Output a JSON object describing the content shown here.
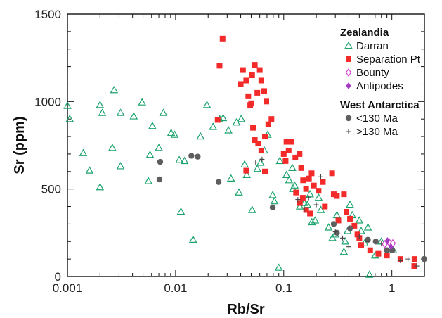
{
  "chart_data": {
    "type": "scatter",
    "xlabel": "Rb/Sr",
    "ylabel": "Sr (ppm)",
    "xscale": "log",
    "xlim": [
      0.001,
      2
    ],
    "ylim": [
      0,
      1500
    ],
    "x_ticks": [
      {
        "value": 0.001,
        "label": "0.001"
      },
      {
        "value": 0.01,
        "label": "0.01"
      },
      {
        "value": 0.1,
        "label": "0.1"
      },
      {
        "value": 1,
        "label": "1"
      }
    ],
    "y_ticks": [
      {
        "value": 0,
        "label": "0"
      },
      {
        "value": 500,
        "label": "500"
      },
      {
        "value": 1000,
        "label": "1000"
      },
      {
        "value": 1500,
        "label": "1500"
      }
    ],
    "legend": {
      "groups": [
        {
          "title": "Zealandia",
          "entries": [
            "Darran",
            "Separation Pt",
            "Bounty",
            "Antipodes"
          ]
        },
        {
          "title": "West Antarctica",
          "entries": [
            "<130 Ma",
            ">130 Ma"
          ]
        }
      ]
    },
    "series": [
      {
        "name": "Darran",
        "marker": "triangle-open",
        "color": "#1aa36b",
        "points": [
          [
            0.001,
            975
          ],
          [
            0.00105,
            900
          ],
          [
            0.0014,
            705
          ],
          [
            0.0016,
            605
          ],
          [
            0.002,
            980
          ],
          [
            0.0021,
            935
          ],
          [
            0.002,
            510
          ],
          [
            0.0027,
            1065
          ],
          [
            0.0026,
            735
          ],
          [
            0.0031,
            935
          ],
          [
            0.0031,
            630
          ],
          [
            0.0041,
            915
          ],
          [
            0.0049,
            995
          ],
          [
            0.0061,
            860
          ],
          [
            0.0058,
            695
          ],
          [
            0.0056,
            545
          ],
          [
            0.007,
            735
          ],
          [
            0.0077,
            935
          ],
          [
            0.0091,
            820
          ],
          [
            0.0098,
            810
          ],
          [
            0.0108,
            665
          ],
          [
            0.0112,
            370
          ],
          [
            0.0121,
            660
          ],
          [
            0.0145,
            210
          ],
          [
            0.017,
            800
          ],
          [
            0.0195,
            980
          ],
          [
            0.0222,
            855
          ],
          [
            0.0255,
            900
          ],
          [
            0.0275,
            905
          ],
          [
            0.0308,
            835
          ],
          [
            0.0325,
            560
          ],
          [
            0.0365,
            880
          ],
          [
            0.0385,
            480
          ],
          [
            0.0405,
            900
          ],
          [
            0.0435,
            640
          ],
          [
            0.0455,
            580
          ],
          [
            0.051,
            380
          ],
          [
            0.057,
            615
          ],
          [
            0.061,
            650
          ],
          [
            0.066,
            720
          ],
          [
            0.071,
            810
          ],
          [
            0.079,
            465
          ],
          [
            0.082,
            430
          ],
          [
            0.09,
            50
          ],
          [
            0.092,
            660
          ],
          [
            0.106,
            580
          ],
          [
            0.112,
            550
          ],
          [
            0.12,
            620
          ],
          [
            0.122,
            500
          ],
          [
            0.126,
            520
          ],
          [
            0.141,
            400
          ],
          [
            0.155,
            420
          ],
          [
            0.165,
            410
          ],
          [
            0.175,
            470
          ],
          [
            0.182,
            310
          ],
          [
            0.195,
            320
          ],
          [
            0.21,
            450
          ],
          [
            0.22,
            380
          ],
          [
            0.26,
            280
          ],
          [
            0.282,
            220
          ],
          [
            0.3,
            240
          ],
          [
            0.31,
            350
          ],
          [
            0.36,
            140
          ],
          [
            0.37,
            200
          ],
          [
            0.39,
            260
          ],
          [
            0.41,
            410
          ],
          [
            0.43,
            350
          ],
          [
            0.5,
            320
          ],
          [
            0.52,
            260
          ],
          [
            0.56,
            190
          ],
          [
            0.6,
            280
          ],
          [
            0.62,
            10
          ],
          [
            0.7,
            120
          ],
          [
            0.8,
            200
          ],
          [
            0.95,
            150
          ],
          [
            1.03,
            150
          ]
        ]
      },
      {
        "name": "Separation Pt",
        "marker": "square-filled",
        "color": "#f22a2a",
        "points": [
          [
            0.0255,
            1205
          ],
          [
            0.0272,
            1360
          ],
          [
            0.0245,
            895
          ],
          [
            0.04,
            1100
          ],
          [
            0.042,
            1180
          ],
          [
            0.045,
            1120
          ],
          [
            0.047,
            1030
          ],
          [
            0.049,
            980
          ],
          [
            0.051,
            1150
          ],
          [
            0.054,
            1210
          ],
          [
            0.057,
            1050
          ],
          [
            0.06,
            1180
          ],
          [
            0.062,
            1120
          ],
          [
            0.066,
            1060
          ],
          [
            0.069,
            1000
          ],
          [
            0.052,
            850
          ],
          [
            0.054,
            780
          ],
          [
            0.058,
            760
          ],
          [
            0.062,
            720
          ],
          [
            0.067,
            800
          ],
          [
            0.072,
            870
          ],
          [
            0.077,
            900
          ],
          [
            0.05,
            990
          ],
          [
            0.045,
            605
          ],
          [
            0.067,
            600
          ],
          [
            0.1,
            700
          ],
          [
            0.104,
            660
          ],
          [
            0.106,
            770
          ],
          [
            0.111,
            720
          ],
          [
            0.118,
            770
          ],
          [
            0.128,
            680
          ],
          [
            0.14,
            700
          ],
          [
            0.145,
            620
          ],
          [
            0.151,
            550
          ],
          [
            0.161,
            500
          ],
          [
            0.171,
            560
          ],
          [
            0.181,
            590
          ],
          [
            0.19,
            520
          ],
          [
            0.21,
            490
          ],
          [
            0.23,
            540
          ],
          [
            0.24,
            400
          ],
          [
            0.28,
            590
          ],
          [
            0.29,
            470
          ],
          [
            0.31,
            460
          ],
          [
            0.32,
            320
          ],
          [
            0.36,
            470
          ],
          [
            0.38,
            370
          ],
          [
            0.41,
            330
          ],
          [
            0.45,
            290
          ],
          [
            0.5,
            220
          ],
          [
            0.52,
            180
          ],
          [
            0.63,
            150
          ],
          [
            0.75,
            130
          ],
          [
            0.9,
            120
          ],
          [
            1.2,
            100
          ],
          [
            1.61,
            60
          ],
          [
            1.62,
            100
          ],
          [
            0.141,
            420
          ],
          [
            0.161,
            380
          ],
          [
            0.175,
            360
          ],
          [
            0.15,
            450
          ],
          [
            0.13,
            480
          ],
          [
            0.48,
            240
          ]
        ]
      },
      {
        "name": "Bounty",
        "marker": "diamond-open",
        "color": "#d63fd6",
        "points": [
          [
            0.945,
            195
          ],
          [
            1.02,
            190
          ],
          [
            0.86,
            185
          ]
        ]
      },
      {
        "name": "Antipodes",
        "marker": "diamond-filled",
        "color": "#a23ac2",
        "points": [
          [
            0.91,
            205
          ],
          [
            0.98,
            170
          ]
        ]
      },
      {
        "name": "<130 Ma",
        "marker": "circle-filled",
        "color": "#5e5e5e",
        "points": [
          [
            0.0072,
            655
          ],
          [
            0.0071,
            555
          ],
          [
            0.014,
            690
          ],
          [
            0.016,
            685
          ],
          [
            0.025,
            540
          ],
          [
            0.079,
            395
          ],
          [
            0.29,
            300
          ],
          [
            0.31,
            250
          ],
          [
            0.41,
            275
          ],
          [
            0.6,
            210
          ],
          [
            0.71,
            200
          ],
          [
            0.9,
            150
          ],
          [
            1.01,
            150
          ],
          [
            1.99,
            100
          ]
        ]
      },
      {
        "name": ">130 Ma",
        "marker": "plus",
        "color": "#444444",
        "points": [
          [
            0.055,
            650
          ],
          [
            0.063,
            670
          ],
          [
            0.135,
            440
          ],
          [
            0.155,
            380
          ],
          [
            0.17,
            450
          ],
          [
            0.2,
            410
          ],
          [
            0.22,
            570
          ],
          [
            0.3,
            255
          ],
          [
            0.35,
            220
          ],
          [
            0.4,
            170
          ],
          [
            0.5,
            230
          ],
          [
            0.6,
            200
          ],
          [
            0.8,
            190
          ],
          [
            1.2,
            90
          ],
          [
            1.41,
            100
          ],
          [
            1.7,
            60
          ]
        ]
      }
    ]
  }
}
